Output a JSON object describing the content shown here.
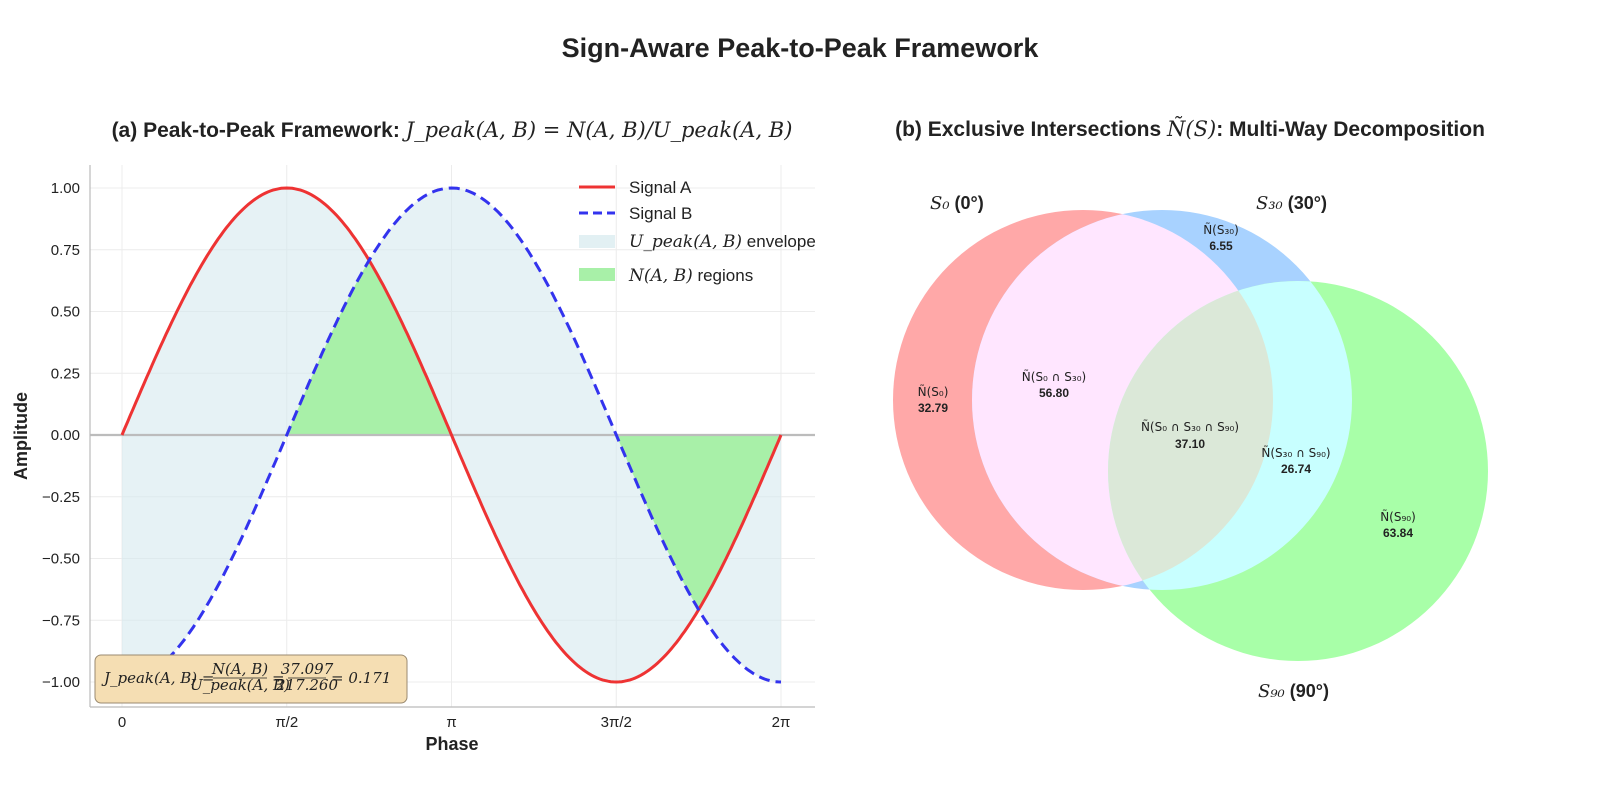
{
  "figure": {
    "title": "Sign-Aware Peak-to-Peak Framework"
  },
  "chart_data": [
    {
      "type": "line",
      "title_prefix": "(a) Peak-to-Peak Framework: ",
      "title_math": "J_peak(A, B) = N(A, B)/U_peak(A, B)",
      "xlabel": "Phase",
      "ylabel": "Amplitude",
      "x_range": [
        0,
        6.283185
      ],
      "ylim": [
        -1.1,
        1.1
      ],
      "x_ticks": [
        {
          "value": 0,
          "label": "0"
        },
        {
          "value": 1.570796,
          "label": "π/2"
        },
        {
          "value": 3.141593,
          "label": "π"
        },
        {
          "value": 4.712389,
          "label": "3π/2"
        },
        {
          "value": 6.283185,
          "label": "2π"
        }
      ],
      "y_ticks": [
        {
          "value": 1.0,
          "label": "1.00"
        },
        {
          "value": 0.75,
          "label": "0.75"
        },
        {
          "value": 0.5,
          "label": "0.50"
        },
        {
          "value": 0.25,
          "label": "0.25"
        },
        {
          "value": 0.0,
          "label": "0.00"
        },
        {
          "value": -0.25,
          "label": "−0.25"
        },
        {
          "value": -0.5,
          "label": "−0.50"
        },
        {
          "value": -0.75,
          "label": "−0.75"
        },
        {
          "value": -1.0,
          "label": "−1.00"
        }
      ],
      "grid": true,
      "series": [
        {
          "name": "Signal A",
          "function": "sin(x)",
          "color": "#ee3333",
          "style": "solid"
        },
        {
          "name": "Signal B",
          "function": "-cos(x)",
          "color": "#3333ee",
          "style": "dashed"
        }
      ],
      "fills": [
        {
          "name": "U_peak(A, B) envelope",
          "color": "#d6eaee"
        },
        {
          "name": "N(A, B) regions",
          "color": "#a8f0a8"
        }
      ],
      "legend_placement": "top-right",
      "legend": {
        "signal_a": "Signal A",
        "signal_b": "Signal B",
        "upeak_math": "U_peak(A, B)",
        "upeak_suffix": " envelope",
        "n_math": "N(A, B)",
        "n_suffix": " regions"
      },
      "annotation": {
        "lhs": "J_peak(A, B) =",
        "numerator": "N(A, B)",
        "denominator": "U_peak(A, B)",
        "eq1": "=",
        "value_num": "37.097",
        "value_den": "217.260",
        "result": "= 0.171",
        "placement": "bottom-left",
        "bg_color": "#f5deb3"
      }
    },
    {
      "type": "venn",
      "title_prefix": "(b) Exclusive Intersections ",
      "title_math": "Ñ(S)",
      "title_suffix": ": Multi-Way Decomposition",
      "sets": [
        {
          "math": "S₀",
          "label": " (0°)",
          "color": "#ffa8a8"
        },
        {
          "math": "S₃₀",
          "label": " (30°)",
          "color": "#a8d2ff"
        },
        {
          "math": "S₉₀",
          "label": " (90°)",
          "color": "#a8ffa8"
        }
      ],
      "regions": [
        {
          "label": "Ñ(S₀)",
          "value": "32.79"
        },
        {
          "label": "Ñ(S₃₀)",
          "value": "6.55"
        },
        {
          "label": "Ñ(S₉₀)",
          "value": "63.84"
        },
        {
          "label": "Ñ(S₀ ∩ S₃₀)",
          "value": "56.80"
        },
        {
          "label": "Ñ(S₃₀ ∩ S₉₀)",
          "value": "26.74"
        },
        {
          "label": "Ñ(S₀ ∩ S₃₀ ∩ S₉₀)",
          "value": "37.10"
        }
      ],
      "region_colors": {
        "s0_s30": "#ffe6ff",
        "s30_s90": "#c8ffff",
        "all": "#dbe8d8"
      }
    }
  ]
}
